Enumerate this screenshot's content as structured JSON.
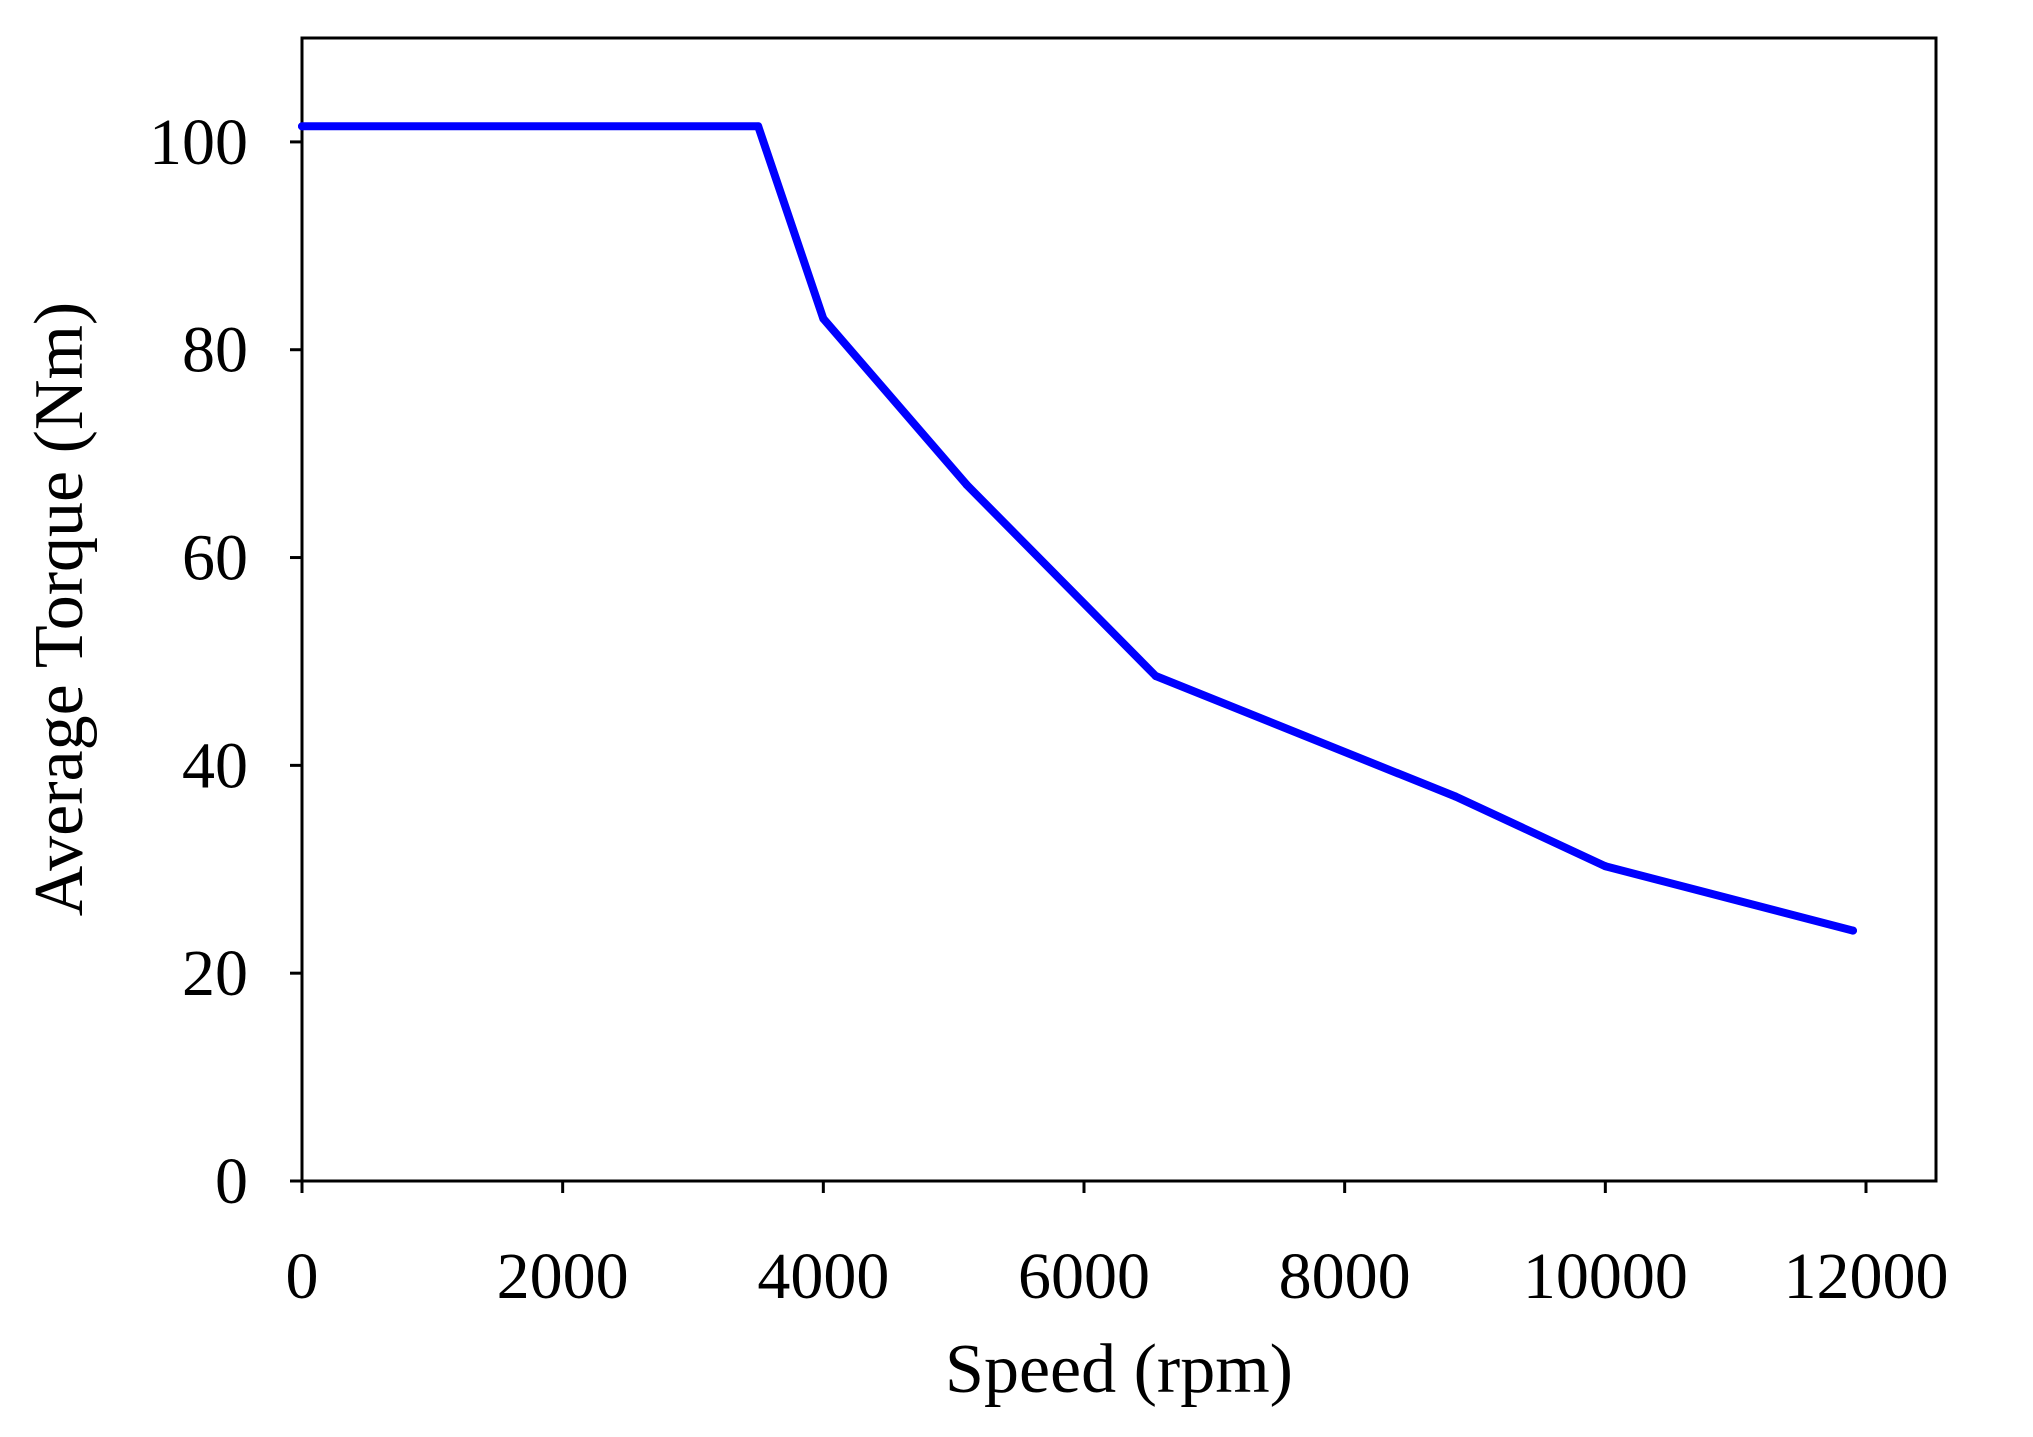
{
  "chart_data": {
    "type": "line",
    "title": "",
    "xlabel": "Speed (rpm)",
    "ylabel": "Average Torque (Nm)",
    "xlim": [
      0,
      12000
    ],
    "ylim": [
      0,
      110
    ],
    "xticks": [
      0,
      2000,
      4000,
      6000,
      8000,
      10000,
      12000
    ],
    "yticks": [
      0,
      20,
      40,
      60,
      80,
      100
    ],
    "xtick_labels": [
      "0",
      "2000",
      "4000",
      "6000",
      "8000",
      "10000",
      "12000"
    ],
    "ytick_labels": [
      "0",
      "20",
      "40",
      "60",
      "80",
      "100"
    ],
    "grid": false,
    "legend": "none",
    "series": [
      {
        "name": "Average Torque",
        "color": "#0000ff",
        "x": [
          0,
          3500,
          4000,
          5100,
          6550,
          8850,
          10000,
          11900
        ],
        "y": [
          101.5,
          101.5,
          83,
          67,
          48.6,
          37,
          30.3,
          24.1
        ]
      }
    ]
  }
}
